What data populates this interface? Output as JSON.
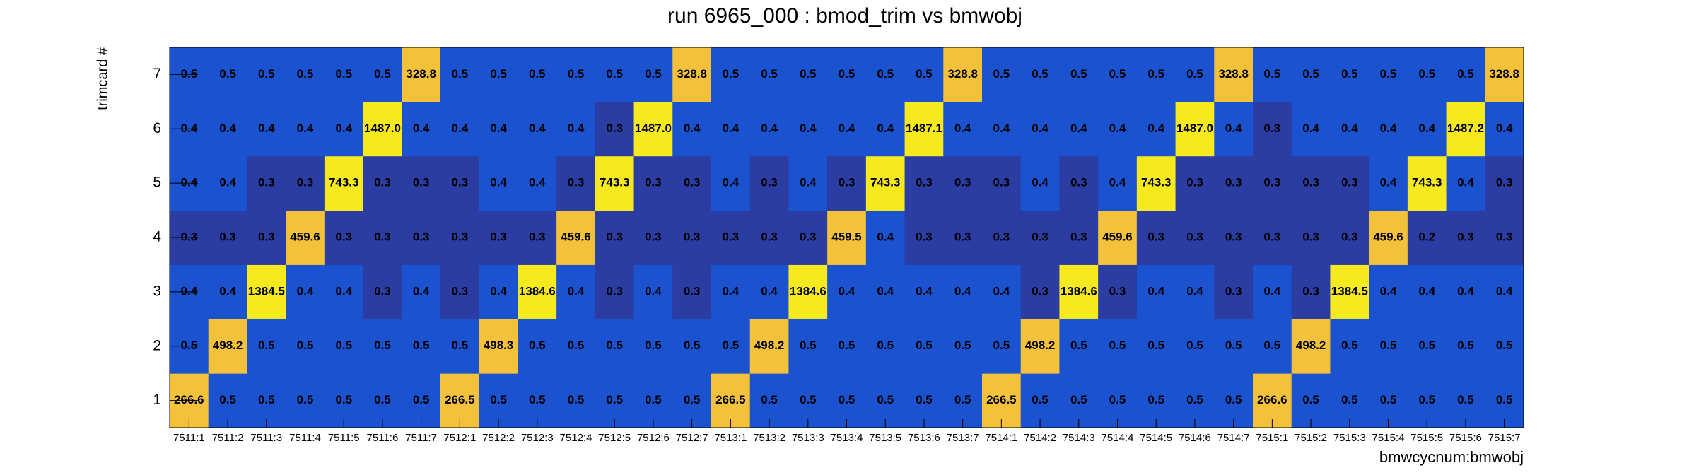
{
  "chart_data": {
    "type": "heatmap",
    "title": "run 6965_000 : bmod_trim vs bmwobj",
    "x_label": "bmwcycnum:bmwobj",
    "y_label": "trimcard #",
    "categories": [
      "7511:1",
      "7511:2",
      "7511:3",
      "7511:4",
      "7511:5",
      "7511:6",
      "7511:7",
      "7512:1",
      "7512:2",
      "7512:3",
      "7512:4",
      "7512:5",
      "7512:6",
      "7512:7",
      "7513:1",
      "7513:2",
      "7513:3",
      "7513:4",
      "7513:5",
      "7513:6",
      "7513:7",
      "7514:1",
      "7514:2",
      "7514:3",
      "7514:4",
      "7514:5",
      "7514:6",
      "7514:7",
      "7515:1",
      "7515:2",
      "7515:3",
      "7515:4",
      "7515:5",
      "7515:6",
      "7515:7"
    ],
    "y_categories": [
      "1",
      "2",
      "3",
      "4",
      "5",
      "6",
      "7"
    ],
    "values": [
      [
        266.6,
        0.5,
        0.5,
        0.5,
        0.5,
        0.5,
        0.5,
        266.5,
        0.5,
        0.5,
        0.5,
        0.5,
        0.5,
        0.5,
        266.5,
        0.5,
        0.5,
        0.5,
        0.5,
        0.5,
        0.5,
        266.5,
        0.5,
        0.5,
        0.5,
        0.5,
        0.5,
        0.5,
        266.6,
        0.5,
        0.5,
        0.5,
        0.5,
        0.5,
        0.5
      ],
      [
        0.5,
        498.2,
        0.5,
        0.5,
        0.5,
        0.5,
        0.5,
        0.5,
        498.3,
        0.5,
        0.5,
        0.5,
        0.5,
        0.5,
        0.5,
        498.2,
        0.5,
        0.5,
        0.5,
        0.5,
        0.5,
        0.5,
        498.2,
        0.5,
        0.5,
        0.5,
        0.5,
        0.5,
        0.5,
        498.2,
        0.5,
        0.5,
        0.5,
        0.5,
        0.5
      ],
      [
        0.4,
        0.4,
        1384.5,
        0.4,
        0.4,
        0.3,
        0.4,
        0.3,
        0.4,
        1384.6,
        0.4,
        0.3,
        0.4,
        0.3,
        0.4,
        0.4,
        1384.6,
        0.4,
        0.4,
        0.4,
        0.4,
        0.4,
        0.3,
        1384.6,
        0.3,
        0.4,
        0.4,
        0.3,
        0.4,
        0.3,
        1384.5,
        0.4,
        0.4,
        0.4,
        0.4
      ],
      [
        0.3,
        0.3,
        0.3,
        459.6,
        0.3,
        0.3,
        0.3,
        0.3,
        0.3,
        0.3,
        459.6,
        0.3,
        0.3,
        0.3,
        0.3,
        0.3,
        0.3,
        459.5,
        0.4,
        0.3,
        0.3,
        0.3,
        0.3,
        0.3,
        459.6,
        0.3,
        0.3,
        0.3,
        0.3,
        0.3,
        0.3,
        459.6,
        0.2,
        0.3,
        0.3
      ],
      [
        0.4,
        0.4,
        0.3,
        0.3,
        743.3,
        0.3,
        0.3,
        0.3,
        0.4,
        0.4,
        0.3,
        743.3,
        0.3,
        0.3,
        0.4,
        0.3,
        0.4,
        0.3,
        743.3,
        0.3,
        0.3,
        0.3,
        0.4,
        0.3,
        0.4,
        743.3,
        0.3,
        0.3,
        0.3,
        0.3,
        0.3,
        0.4,
        743.3,
        0.4,
        0.3
      ],
      [
        0.4,
        0.4,
        0.4,
        0.4,
        0.4,
        1487,
        0.4,
        0.4,
        0.4,
        0.4,
        0.4,
        0.3,
        1487,
        0.4,
        0.4,
        0.4,
        0.4,
        0.4,
        0.4,
        1487.1,
        0.4,
        0.4,
        0.4,
        0.4,
        0.4,
        0.4,
        1487,
        0.4,
        0.3,
        0.4,
        0.4,
        0.4,
        0.4,
        1487.2,
        0.4
      ],
      [
        0.5,
        0.5,
        0.5,
        0.5,
        0.5,
        0.5,
        328.8,
        0.5,
        0.5,
        0.5,
        0.5,
        0.5,
        0.5,
        328.8,
        0.5,
        0.5,
        0.5,
        0.5,
        0.5,
        0.5,
        328.8,
        0.5,
        0.5,
        0.5,
        0.5,
        0.5,
        0.5,
        328.8,
        0.5,
        0.5,
        0.5,
        0.5,
        0.5,
        0.5,
        328.8
      ]
    ],
    "value_labels": [
      [
        "266.6",
        "0.5",
        "0.5",
        "0.5",
        "0.5",
        "0.5",
        "0.5",
        "266.5",
        "0.5",
        "0.5",
        "0.5",
        "0.5",
        "0.5",
        "0.5",
        "266.5",
        "0.5",
        "0.5",
        "0.5",
        "0.5",
        "0.5",
        "0.5",
        "266.5",
        "0.5",
        "0.5",
        "0.5",
        "0.5",
        "0.5",
        "0.5",
        "266.6",
        "0.5",
        "0.5",
        "0.5",
        "0.5",
        "0.5",
        "0.5"
      ],
      [
        "0.5",
        "498.2",
        "0.5",
        "0.5",
        "0.5",
        "0.5",
        "0.5",
        "0.5",
        "498.3",
        "0.5",
        "0.5",
        "0.5",
        "0.5",
        "0.5",
        "0.5",
        "498.2",
        "0.5",
        "0.5",
        "0.5",
        "0.5",
        "0.5",
        "0.5",
        "498.2",
        "0.5",
        "0.5",
        "0.5",
        "0.5",
        "0.5",
        "0.5",
        "498.2",
        "0.5",
        "0.5",
        "0.5",
        "0.5",
        "0.5"
      ],
      [
        "0.4",
        "0.4",
        "1384.5",
        "0.4",
        "0.4",
        "0.3",
        "0.4",
        "0.3",
        "0.4",
        "1384.6",
        "0.4",
        "0.3",
        "0.4",
        "0.3",
        "0.4",
        "0.4",
        "1384.6",
        "0.4",
        "0.4",
        "0.4",
        "0.4",
        "0.4",
        "0.3",
        "1384.6",
        "0.3",
        "0.4",
        "0.4",
        "0.3",
        "0.4",
        "0.3",
        "1384.5",
        "0.4",
        "0.4",
        "0.4",
        "0.4"
      ],
      [
        "0.3",
        "0.3",
        "0.3",
        "459.6",
        "0.3",
        "0.3",
        "0.3",
        "0.3",
        "0.3",
        "0.3",
        "459.6",
        "0.3",
        "0.3",
        "0.3",
        "0.3",
        "0.3",
        "0.3",
        "459.5",
        "0.4",
        "0.3",
        "0.3",
        "0.3",
        "0.3",
        "0.3",
        "459.6",
        "0.3",
        "0.3",
        "0.3",
        "0.3",
        "0.3",
        "0.3",
        "459.6",
        "0.2",
        "0.3",
        "0.3"
      ],
      [
        "0.4",
        "0.4",
        "0.3",
        "0.3",
        "743.3",
        "0.3",
        "0.3",
        "0.3",
        "0.4",
        "0.4",
        "0.3",
        "743.3",
        "0.3",
        "0.3",
        "0.4",
        "0.3",
        "0.4",
        "0.3",
        "743.3",
        "0.3",
        "0.3",
        "0.3",
        "0.4",
        "0.3",
        "0.4",
        "743.3",
        "0.3",
        "0.3",
        "0.3",
        "0.3",
        "0.3",
        "0.4",
        "743.3",
        "0.4",
        "0.3"
      ],
      [
        "0.4",
        "0.4",
        "0.4",
        "0.4",
        "0.4",
        "1487.0",
        "0.4",
        "0.4",
        "0.4",
        "0.4",
        "0.4",
        "0.3",
        "1487.0",
        "0.4",
        "0.4",
        "0.4",
        "0.4",
        "0.4",
        "0.4",
        "1487.1",
        "0.4",
        "0.4",
        "0.4",
        "0.4",
        "0.4",
        "0.4",
        "1487.0",
        "0.4",
        "0.3",
        "0.4",
        "0.4",
        "0.4",
        "0.4",
        "1487.2",
        "0.4"
      ],
      [
        "0.5",
        "0.5",
        "0.5",
        "0.5",
        "0.5",
        "0.5",
        "328.8",
        "0.5",
        "0.5",
        "0.5",
        "0.5",
        "0.5",
        "0.5",
        "328.8",
        "0.5",
        "0.5",
        "0.5",
        "0.5",
        "0.5",
        "0.5",
        "328.8",
        "0.5",
        "0.5",
        "0.5",
        "0.5",
        "0.5",
        "0.5",
        "328.8",
        "0.5",
        "0.5",
        "0.5",
        "0.5",
        "0.5",
        "0.5",
        "328.8"
      ]
    ],
    "palette": {
      "thresholds": [
        0.35,
        100,
        700
      ],
      "colors": [
        "#2b3ca3",
        "#1a52d0",
        "#f3c13a",
        "#f6ea1e"
      ]
    }
  }
}
